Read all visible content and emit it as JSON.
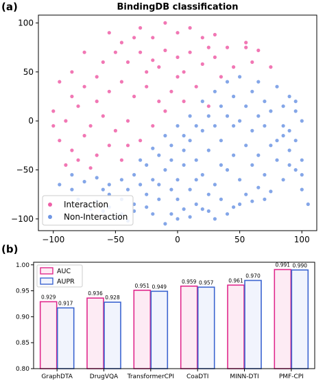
{
  "chart_data": [
    {
      "type": "scatter",
      "panel_label": "(a)",
      "title": "BindingDB classification",
      "xlim": [
        -112,
        112
      ],
      "ylim": [
        -112,
        108
      ],
      "xticks": [
        -100,
        -50,
        0,
        50,
        100
      ],
      "yticks": [
        -100,
        -50,
        0,
        50,
        100
      ],
      "grid": false,
      "legend_position": "lower-left",
      "series": [
        {
          "name": "Interaction",
          "color": "#ee5fa7",
          "points": [
            [
              -55,
              90
            ],
            [
              -45,
              80
            ],
            [
              -30,
              95
            ],
            [
              -20,
              85
            ],
            [
              -10,
              100
            ],
            [
              0,
              90
            ],
            [
              10,
              95
            ],
            [
              20,
              85
            ],
            [
              30,
              88
            ],
            [
              40,
              75
            ],
            [
              55,
              80
            ],
            [
              65,
              72
            ],
            [
              -75,
              70
            ],
            [
              -60,
              60
            ],
            [
              -50,
              70
            ],
            [
              -40,
              60
            ],
            [
              -30,
              70
            ],
            [
              -20,
              62
            ],
            [
              -10,
              72
            ],
            [
              0,
              65
            ],
            [
              10,
              70
            ],
            [
              20,
              58
            ],
            [
              30,
              65
            ],
            [
              45,
              55
            ],
            [
              60,
              60
            ],
            [
              75,
              55
            ],
            [
              -95,
              40
            ],
            [
              -85,
              50
            ],
            [
              -75,
              35
            ],
            [
              -65,
              45
            ],
            [
              -55,
              30
            ],
            [
              -45,
              40
            ],
            [
              -35,
              25
            ],
            [
              -25,
              35
            ],
            [
              -15,
              20
            ],
            [
              -5,
              30
            ],
            [
              5,
              20
            ],
            [
              15,
              35
            ],
            [
              25,
              15
            ],
            [
              -100,
              10
            ],
            [
              -90,
              0
            ],
            [
              -80,
              15
            ],
            [
              -70,
              -5
            ],
            [
              -60,
              5
            ],
            [
              -50,
              -10
            ],
            [
              -40,
              0
            ],
            [
              -30,
              -20
            ],
            [
              -20,
              -5
            ],
            [
              -95,
              -20
            ],
            [
              -85,
              -30
            ],
            [
              -75,
              -15
            ],
            [
              -65,
              -35
            ],
            [
              -55,
              -25
            ],
            [
              -45,
              -40
            ],
            [
              -90,
              -45
            ],
            [
              -80,
              -40
            ],
            [
              -10,
              10
            ],
            [
              0,
              45
            ],
            [
              -15,
              55
            ],
            [
              35,
              45
            ],
            [
              55,
              75
            ],
            [
              -35,
              85
            ],
            [
              25,
              75
            ],
            [
              -65,
              20
            ],
            [
              -85,
              25
            ],
            [
              -100,
              -5
            ],
            [
              -40,
              -25
            ],
            [
              -70,
              -48
            ],
            [
              5,
              50
            ],
            [
              -25,
              50
            ]
          ]
        },
        {
          "name": "Non-Interaction",
          "color": "#6f96e4",
          "points": [
            [
              60,
              30
            ],
            [
              70,
              20
            ],
            [
              80,
              35
            ],
            [
              90,
              25
            ],
            [
              95,
              10
            ],
            [
              100,
              0
            ],
            [
              85,
              -5
            ],
            [
              75,
              10
            ],
            [
              65,
              5
            ],
            [
              55,
              15
            ],
            [
              45,
              25
            ],
            [
              35,
              15
            ],
            [
              25,
              5
            ],
            [
              15,
              -5
            ],
            [
              5,
              -15
            ],
            [
              -5,
              -25
            ],
            [
              -15,
              -35
            ],
            [
              -25,
              -45
            ],
            [
              -35,
              -55
            ],
            [
              -45,
              -60
            ],
            [
              -55,
              -65
            ],
            [
              -65,
              -58
            ],
            [
              -75,
              -62
            ],
            [
              -85,
              -70
            ],
            [
              -10,
              -50
            ],
            [
              0,
              -60
            ],
            [
              10,
              -70
            ],
            [
              20,
              -55
            ],
            [
              30,
              -65
            ],
            [
              40,
              -50
            ],
            [
              50,
              -60
            ],
            [
              60,
              -45
            ],
            [
              70,
              -55
            ],
            [
              80,
              -40
            ],
            [
              90,
              -30
            ],
            [
              95,
              -20
            ],
            [
              85,
              -15
            ],
            [
              75,
              -25
            ],
            [
              65,
              -35
            ],
            [
              55,
              -25
            ],
            [
              45,
              -35
            ],
            [
              35,
              -20
            ],
            [
              25,
              -30
            ],
            [
              15,
              -40
            ],
            [
              5,
              -45
            ],
            [
              -5,
              -70
            ],
            [
              -15,
              -80
            ],
            [
              -25,
              -75
            ],
            [
              -35,
              -85
            ],
            [
              -45,
              -80
            ],
            [
              -55,
              -75
            ],
            [
              -65,
              -82
            ],
            [
              -5,
              -95
            ],
            [
              5,
              -90
            ],
            [
              15,
              -85
            ],
            [
              25,
              -92
            ],
            [
              35,
              -80
            ],
            [
              45,
              -88
            ],
            [
              55,
              -75
            ],
            [
              65,
              -68
            ],
            [
              75,
              -72
            ],
            [
              85,
              -60
            ],
            [
              95,
              -50
            ],
            [
              100,
              -40
            ],
            [
              90,
              -45
            ],
            [
              -20,
              -95
            ],
            [
              -10,
              -105
            ],
            [
              0,
              -100
            ],
            [
              10,
              -98
            ],
            [
              20,
              -90
            ],
            [
              30,
              -100
            ],
            [
              40,
              -95
            ],
            [
              50,
              -85
            ],
            [
              60,
              -82
            ],
            [
              70,
              -80
            ],
            [
              -30,
              -65
            ],
            [
              -20,
              -60
            ],
            [
              -40,
              -70
            ],
            [
              10,
              -20
            ],
            [
              20,
              -10
            ],
            [
              30,
              -5
            ],
            [
              40,
              5
            ],
            [
              50,
              0
            ],
            [
              60,
              -10
            ],
            [
              70,
              -5
            ],
            [
              80,
              -20
            ],
            [
              90,
              -10
            ],
            [
              100,
              -55
            ],
            [
              105,
              -85
            ],
            [
              95,
              20
            ],
            [
              85,
              15
            ],
            [
              45,
              -5
            ],
            [
              35,
              -45
            ],
            [
              25,
              -75
            ],
            [
              15,
              -60
            ],
            [
              5,
              -30
            ],
            [
              -5,
              -40
            ],
            [
              -15,
              -65
            ],
            [
              -25,
              -88
            ],
            [
              -35,
              -92
            ],
            [
              -45,
              -95
            ],
            [
              -55,
              -88
            ],
            [
              -95,
              -65
            ],
            [
              -85,
              -55
            ],
            [
              -80,
              -80
            ],
            [
              -70,
              -90
            ],
            [
              -60,
              -92
            ],
            [
              -50,
              -100
            ],
            [
              -40,
              -102
            ],
            [
              -60,
              -70
            ],
            [
              -10,
              -15
            ],
            [
              0,
              -5
            ],
            [
              10,
              5
            ],
            [
              20,
              20
            ],
            [
              30,
              30
            ],
            [
              40,
              40
            ],
            [
              50,
              45
            ],
            [
              65,
              40
            ],
            [
              100,
              -70
            ],
            [
              -30,
              -40
            ],
            [
              -20,
              -28
            ],
            [
              0,
              -80
            ]
          ]
        }
      ]
    },
    {
      "type": "bar",
      "panel_label": "(b)",
      "categories": [
        "GraphDTA",
        "DrugVQA",
        "TransformerCPI",
        "CoaDTI",
        "MINN-DTI",
        "PMF-CPI"
      ],
      "ylim": [
        0.8,
        1.005
      ],
      "yticks": [
        0.8,
        0.85,
        0.9,
        0.95,
        1.0
      ],
      "legend_position": "top-left",
      "series": [
        {
          "name": "AUC",
          "edge_color": "#e0288c",
          "fill_color": "#fdebf4",
          "values": [
            0.929,
            0.936,
            0.951,
            0.959,
            0.961,
            0.991
          ],
          "labels": [
            "0.929",
            "0.936",
            "0.951",
            "0.959",
            "0.961",
            "0.991"
          ]
        },
        {
          "name": "AUPR",
          "edge_color": "#3b64d0",
          "fill_color": "#f1f4fd",
          "values": [
            0.917,
            0.928,
            0.949,
            0.957,
            0.97,
            0.99
          ],
          "labels": [
            "0.917",
            "0.928",
            "0.949",
            "0.957",
            "0.970",
            "0.990"
          ]
        }
      ]
    }
  ]
}
